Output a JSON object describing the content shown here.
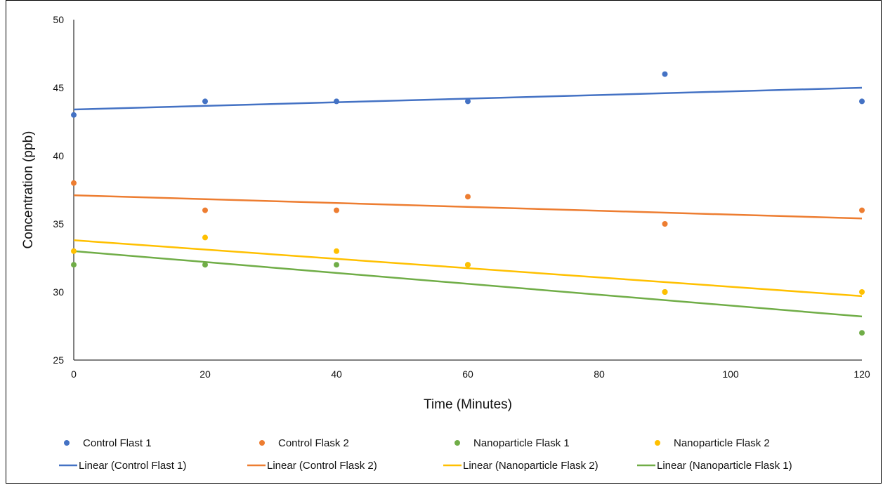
{
  "chart_data": {
    "type": "scatter",
    "title": "",
    "xlabel": "Time (Minutes)",
    "ylabel": "Concentration (ppb)",
    "xlim": [
      0,
      120
    ],
    "ylim": [
      25,
      50
    ],
    "x_ticks": [
      0,
      20,
      40,
      60,
      80,
      100,
      120
    ],
    "y_ticks": [
      25,
      30,
      35,
      40,
      45,
      50
    ],
    "grid": false,
    "legend_position": "bottom",
    "series": [
      {
        "name": "Control Flast 1",
        "color": "#4472C4",
        "x": [
          0,
          20,
          40,
          60,
          90,
          120
        ],
        "y": [
          43,
          44,
          44,
          44,
          46,
          44
        ],
        "trendline": {
          "name": "Linear (Control Flast 1)",
          "y_start": 43.4,
          "y_end": 45.0
        }
      },
      {
        "name": "Control Flask 2",
        "color": "#ED7D31",
        "x": [
          0,
          20,
          40,
          60,
          90,
          120
        ],
        "y": [
          38,
          36,
          36,
          37,
          35,
          36
        ],
        "trendline": {
          "name": "Linear (Control Flask 2)",
          "y_start": 37.1,
          "y_end": 35.4
        }
      },
      {
        "name": "Nanoparticle Flask 1",
        "color": "#70AD47",
        "x": [
          0,
          20,
          40,
          60,
          90,
          120
        ],
        "y": [
          32,
          32,
          32,
          32,
          30,
          27
        ],
        "trendline": {
          "name": "Linear (Nanoparticle Flask 1)",
          "y_start": 33.0,
          "y_end": 28.2
        }
      },
      {
        "name": "Nanoparticle Flask 2",
        "color": "#FFC000",
        "x": [
          0,
          20,
          40,
          60,
          90,
          120
        ],
        "y": [
          33,
          34,
          33,
          32,
          30,
          30
        ],
        "trendline": {
          "name": "Linear (Nanoparticle Flask 2)",
          "y_start": 33.8,
          "y_end": 29.7
        }
      }
    ],
    "legend_row1": [
      "Control Flast 1",
      "Control Flask 2",
      "Nanoparticle Flask 1",
      "Nanoparticle Flask 2"
    ],
    "legend_row2": [
      "Linear (Control Flast 1)",
      "Linear (Control Flask 2)",
      "Linear (Nanoparticle Flask 2)",
      "Linear (Nanoparticle Flask 1)"
    ],
    "legend_row2_colors": [
      "#4472C4",
      "#ED7D31",
      "#FFC000",
      "#70AD47"
    ]
  }
}
